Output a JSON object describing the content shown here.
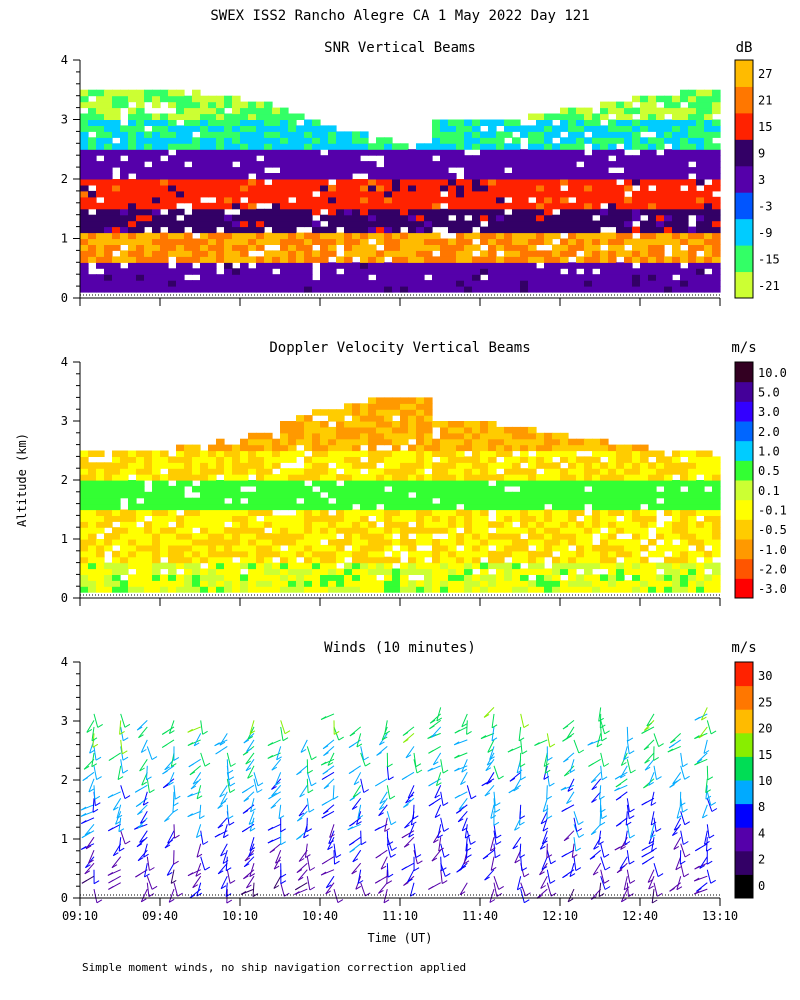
{
  "page": {
    "title": "SWEX ISS2 Rancho Alegre CA   1 May 2022 Day 121",
    "xlabel": "Time (UT)",
    "ylabel": "Altitude (km)",
    "footnote": "Simple moment winds, no ship navigation correction applied",
    "x_ticks": [
      "09:10",
      "09:40",
      "10:10",
      "10:40",
      "11:10",
      "11:40",
      "12:10",
      "12:40",
      "13:10"
    ],
    "y_ticks": [
      "0",
      "1",
      "2",
      "3",
      "4"
    ]
  },
  "chart_data": [
    {
      "type": "heatmap",
      "title": "SNR Vertical Beams",
      "unit": "dB",
      "xlim": [
        "09:10",
        "13:10"
      ],
      "ylim": [
        0,
        4
      ],
      "colorbar_ticks": [
        "27",
        "21",
        "15",
        "9",
        "3",
        "-3",
        "-9",
        "-15",
        "-21"
      ],
      "colors": [
        "#ccff33",
        "#33ff66",
        "#00ccff",
        "#0055ff",
        "#5500aa",
        "#330066",
        "#ff2200",
        "#ff7700",
        "#ffbb00"
      ],
      "profile": [
        {
          "altitude_km": 0.25,
          "value": 6
        },
        {
          "altitude_km": 0.75,
          "value": 27
        },
        {
          "altitude_km": 1.25,
          "value": 12
        },
        {
          "altitude_km": 1.75,
          "value": 18
        },
        {
          "altitude_km": 2.25,
          "value": 3
        },
        {
          "altitude_km": 2.75,
          "value": -15
        },
        {
          "altitude_km": 3.25,
          "value": -21
        }
      ]
    },
    {
      "type": "heatmap",
      "title": "Doppler Velocity Vertical Beams",
      "unit": "m/s",
      "xlim": [
        "09:10",
        "13:10"
      ],
      "ylim": [
        0,
        4
      ],
      "colorbar_ticks": [
        "10.0",
        "5.0",
        "3.0",
        "2.0",
        "1.0",
        "0.5",
        "0.1",
        "-0.1",
        "-0.5",
        "-1.0",
        "-2.0",
        "-3.0"
      ],
      "colors": [
        "#ff0000",
        "#ff5500",
        "#ff9900",
        "#ffcc00",
        "#ffff00",
        "#ccff33",
        "#33ff33",
        "#00ccff",
        "#0066ff",
        "#3300ff",
        "#440099",
        "#330022"
      ],
      "profile": [
        {
          "altitude_km": 0.25,
          "value": -0.1
        },
        {
          "altitude_km": 0.75,
          "value": -0.5
        },
        {
          "altitude_km": 1.25,
          "value": -0.5
        },
        {
          "altitude_km": 1.75,
          "value": 0.5
        },
        {
          "altitude_km": 2.25,
          "value": -0.5
        },
        {
          "altitude_km": 2.75,
          "value": -1.0
        }
      ]
    },
    {
      "type": "scatter",
      "title": "Winds (10 minutes)",
      "unit": "m/s",
      "xlim": [
        "09:10",
        "13:10"
      ],
      "ylim": [
        0,
        4
      ],
      "colorbar_ticks": [
        "30",
        "25",
        "20",
        "15",
        "10",
        "8",
        "4",
        "2",
        "0"
      ],
      "colors": [
        "#000000",
        "#330066",
        "#5500aa",
        "#0000ff",
        "#00aaff",
        "#00dd55",
        "#88ee00",
        "#ffbb00",
        "#ff7700",
        "#ff2200"
      ],
      "barb_times": [
        "09:10",
        "09:20",
        "09:30",
        "09:40",
        "09:50",
        "10:00",
        "10:10",
        "10:20",
        "10:30",
        "10:40",
        "10:50",
        "11:00",
        "11:10",
        "11:20",
        "11:30",
        "11:40",
        "11:50",
        "12:00",
        "12:10",
        "12:20",
        "12:30",
        "12:40",
        "12:50",
        "13:00"
      ]
    }
  ]
}
